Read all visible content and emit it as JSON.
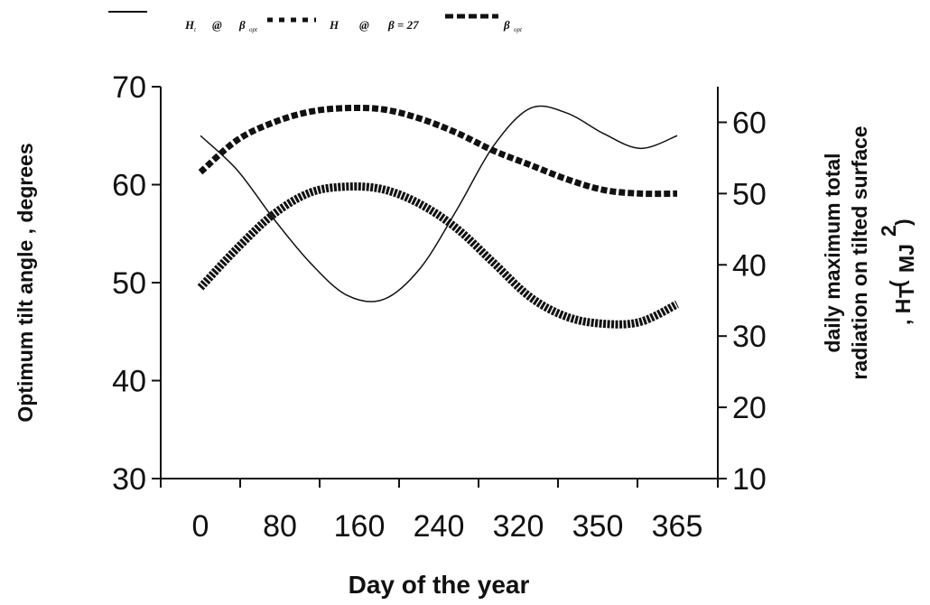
{
  "chart_data": {
    "type": "line",
    "title": "",
    "xlabel": "Day of the year",
    "ylabel_left": "Optimum tilt angle , degrees",
    "ylabel_right_line1": "daily maximum total",
    "ylabel_right_line2": "radiation on tilted surface",
    "ylabel_right_line3": ", H",
    "ylabel_right_sub": "T",
    "ylabel_right_paren": "(",
    "ylabel_right_unit": "MJ",
    "ylabel_right_sup": "2",
    "ylabel_right_close": ")",
    "x_tick_labels": [
      "0",
      "80",
      "160",
      "240",
      "320",
      "350",
      "365"
    ],
    "y_left_ticks": [
      "30",
      "40",
      "50",
      "60",
      "70"
    ],
    "y_left_lim": [
      30,
      70
    ],
    "y_right_ticks": [
      "10",
      "20",
      "30",
      "40",
      "50",
      "60"
    ],
    "y_right_lim": [
      10,
      65
    ],
    "grid": false,
    "legend_position": "top",
    "legend": {
      "item1_label": "H",
      "item1_sub": "t",
      "item1_at": "@",
      "item1_beta": "β",
      "item1_beta_sub": "opt",
      "item2_label": "H",
      "item2_at": "@",
      "item2_beta_eq": "β = 27",
      "item3_beta": "β",
      "item3_beta_sub": "opt"
    },
    "x_positions": [
      0,
      0.5,
      1,
      1.5,
      2,
      2.5,
      3,
      3.5,
      4,
      4.5,
      5,
      5.5,
      6,
      6.5
    ],
    "series": [
      {
        "axis": "left",
        "style": "solid",
        "values": [
          65.0,
          61.5,
          56.5,
          52.0,
          48.7,
          48.3,
          51.5,
          57.5,
          64.0,
          67.8,
          67.3,
          65.2,
          63.7,
          65.0
        ]
      },
      {
        "axis": "right",
        "style": "dashed",
        "values": [
          53.0,
          57.5,
          60.0,
          61.5,
          62.0,
          61.8,
          60.5,
          58.5,
          56.0,
          54.0,
          52.0,
          50.5,
          50.0,
          50.0
        ]
      },
      {
        "axis": "left",
        "style": "dotted",
        "values": [
          49.5,
          53.5,
          57.0,
          59.2,
          59.8,
          59.5,
          58.0,
          55.5,
          52.0,
          48.5,
          46.5,
          45.8,
          46.0,
          47.8
        ]
      }
    ]
  },
  "colors": {
    "ink": "#111111",
    "background": "#ffffff"
  }
}
